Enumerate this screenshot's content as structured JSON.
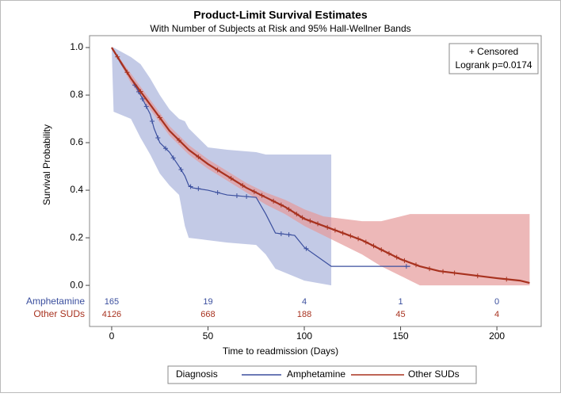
{
  "chart_data": {
    "type": "survival",
    "title": "Product-Limit Survival Estimates",
    "subtitle": "With Number of Subjects at Risk and 95% Hall-Wellner Bands",
    "x_label": "Time to readmission (Days)",
    "y_label": "Survival Probability",
    "xlim": [
      -11.5,
      223
    ],
    "ylim": [
      -0.033,
      1.05
    ],
    "xticks": [
      0,
      50,
      100,
      150,
      200
    ],
    "yticks": [
      {
        "value": 0,
        "label": "0.0"
      },
      {
        "value": 0.2,
        "label": "0.2"
      },
      {
        "value": 0.4,
        "label": "0.4"
      },
      {
        "value": 0.6,
        "label": "0.6"
      },
      {
        "value": 0.8,
        "label": "0.8"
      },
      {
        "value": 1,
        "label": "1.0"
      }
    ],
    "inset_legend": [
      "+ Censored",
      "Logrank p=0.0174"
    ],
    "legend_title": "Diagnosis",
    "series": [
      {
        "name": "Amphetamine",
        "color": "#3b4f9e",
        "band_color": "#aab3dc",
        "x": [
          0,
          5,
          10,
          15,
          20,
          22,
          25,
          30,
          35,
          38,
          40,
          42,
          50,
          60,
          75,
          80,
          85,
          95,
          100,
          114,
          155
        ],
        "values": [
          1.0,
          0.93,
          0.87,
          0.8,
          0.72,
          0.66,
          0.6,
          0.56,
          0.5,
          0.46,
          0.42,
          0.41,
          0.4,
          0.38,
          0.37,
          0.3,
          0.22,
          0.21,
          0.16,
          0.08,
          0.08
        ],
        "band_x": [
          0,
          1,
          10,
          15,
          20,
          25,
          30,
          35,
          38,
          40,
          50,
          60,
          75,
          80,
          85,
          100,
          114
        ],
        "band_lower": [
          1.0,
          0.73,
          0.7,
          0.62,
          0.55,
          0.47,
          0.42,
          0.38,
          0.25,
          0.2,
          0.19,
          0.18,
          0.17,
          0.13,
          0.07,
          0.02,
          0.0
        ],
        "band_upper": [
          1.0,
          1.0,
          0.96,
          0.93,
          0.87,
          0.8,
          0.74,
          0.7,
          0.69,
          0.66,
          0.58,
          0.57,
          0.56,
          0.55,
          0.55,
          0.55,
          0.55
        ],
        "censored_x": [
          12,
          14,
          16,
          18,
          21,
          24,
          28,
          32,
          36,
          41,
          45,
          55,
          65,
          70,
          88,
          92,
          101,
          153
        ],
        "at_risk": [
          165,
          19,
          4,
          1,
          0
        ]
      },
      {
        "name": "Other SUDs",
        "color": "#a8321f",
        "band_color": "#e59a9a",
        "x": [
          0,
          10,
          20,
          30,
          40,
          50,
          60,
          70,
          80,
          90,
          100,
          110,
          120,
          130,
          140,
          150,
          160,
          170,
          180,
          200,
          212,
          217
        ],
        "values": [
          1.0,
          0.87,
          0.76,
          0.65,
          0.57,
          0.51,
          0.46,
          0.41,
          0.37,
          0.33,
          0.28,
          0.25,
          0.22,
          0.19,
          0.15,
          0.11,
          0.08,
          0.06,
          0.05,
          0.03,
          0.02,
          0.01
        ],
        "band_x": [
          0,
          10,
          20,
          30,
          40,
          50,
          60,
          70,
          80,
          90,
          100,
          110,
          120,
          130,
          140,
          150,
          155,
          160,
          217
        ],
        "band_lower": [
          1.0,
          0.85,
          0.74,
          0.63,
          0.55,
          0.49,
          0.44,
          0.39,
          0.34,
          0.3,
          0.25,
          0.21,
          0.17,
          0.13,
          0.08,
          0.04,
          0.02,
          0.0,
          0.0
        ],
        "band_upper": [
          1.0,
          0.89,
          0.78,
          0.67,
          0.59,
          0.53,
          0.48,
          0.43,
          0.39,
          0.36,
          0.32,
          0.29,
          0.28,
          0.27,
          0.27,
          0.29,
          0.3,
          0.3,
          0.3
        ],
        "censored_x": [
          3,
          8,
          15,
          25,
          35,
          45,
          55,
          62,
          68,
          74,
          78,
          84,
          88,
          92,
          96,
          99,
          103,
          107,
          112,
          116,
          120,
          124,
          128,
          132,
          136,
          140,
          144,
          148,
          152,
          158,
          165,
          172,
          178,
          190,
          205
        ],
        "at_risk": [
          4126,
          668,
          188,
          45,
          4
        ]
      }
    ]
  }
}
